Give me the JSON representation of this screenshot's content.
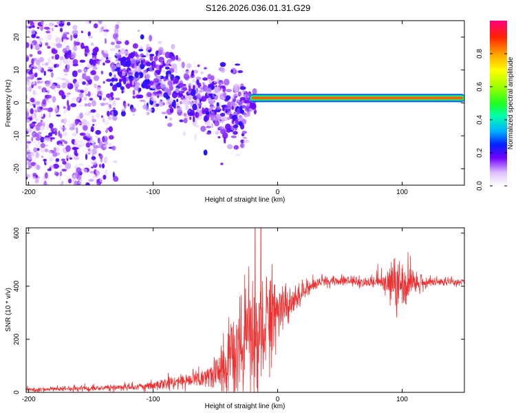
{
  "title": "S126.2026.036.01.31.G29",
  "chart_data": [
    {
      "type": "heatmap",
      "name": "spectrogram",
      "xlabel": "Height of straight line (km)",
      "ylabel": "Frequency (Hz)",
      "xlim": [
        -202,
        150
      ],
      "ylim": [
        -25,
        25
      ],
      "xticks": [
        -200,
        -100,
        0,
        100
      ],
      "yticks": [
        -20,
        -10,
        0,
        10,
        20
      ],
      "colorbar": {
        "label": "Normalized spectral amplitude",
        "range": [
          0,
          1
        ],
        "ticks": [
          0.0,
          0.2,
          0.4,
          0.6,
          0.8
        ]
      },
      "signal_line": {
        "x_start": -22,
        "x_end": 150,
        "frequency": 1.5,
        "amplitude": 0.85
      }
    },
    {
      "type": "line",
      "name": "snr",
      "xlabel": "Height of straight line (km)",
      "ylabel": "SNR (10 * v/v)",
      "xlim": [
        -202,
        150
      ],
      "ylim": [
        0,
        620
      ],
      "xticks": [
        -200,
        -100,
        0,
        100
      ],
      "yticks": [
        0,
        200,
        400,
        600
      ],
      "color": "#f03030",
      "x": [
        -200,
        -150,
        -120,
        -100,
        -80,
        -60,
        -50,
        -40,
        -30,
        -20,
        -15,
        -10,
        -5,
        0,
        5,
        10,
        20,
        30,
        40,
        60,
        80,
        90,
        95,
        100,
        105,
        110,
        120,
        150
      ],
      "y": [
        10,
        15,
        20,
        25,
        40,
        55,
        70,
        110,
        150,
        200,
        240,
        270,
        290,
        300,
        310,
        330,
        380,
        410,
        420,
        420,
        415,
        410,
        405,
        400,
        400,
        410,
        415,
        415
      ],
      "noise_amplitude": [
        8,
        10,
        12,
        15,
        25,
        40,
        60,
        120,
        200,
        250,
        250,
        220,
        180,
        100,
        90,
        70,
        40,
        25,
        20,
        20,
        25,
        60,
        100,
        120,
        100,
        40,
        20,
        15
      ]
    }
  ]
}
